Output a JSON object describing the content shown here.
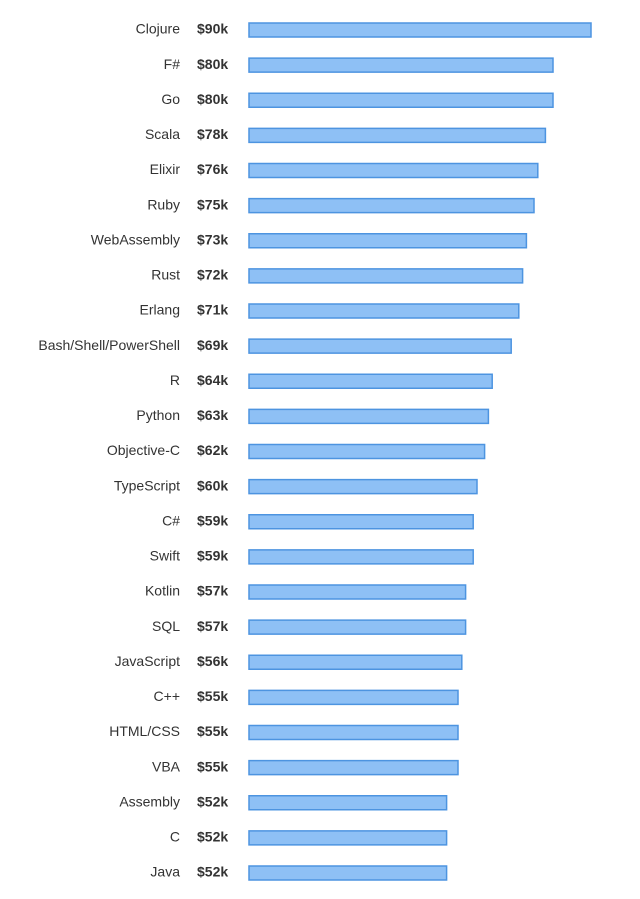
{
  "chart_data": {
    "type": "bar",
    "orientation": "horizontal",
    "categories": [
      "Clojure",
      "F#",
      "Go",
      "Scala",
      "Elixir",
      "Ruby",
      "WebAssembly",
      "Rust",
      "Erlang",
      "Bash/Shell/PowerShell",
      "R",
      "Python",
      "Objective-C",
      "TypeScript",
      "C#",
      "Swift",
      "Kotlin",
      "SQL",
      "JavaScript",
      "C++",
      "HTML/CSS",
      "VBA",
      "Assembly",
      "C",
      "Java"
    ],
    "values": [
      90,
      80,
      80,
      78,
      76,
      75,
      73,
      72,
      71,
      69,
      64,
      63,
      62,
      60,
      59,
      59,
      57,
      57,
      56,
      55,
      55,
      55,
      52,
      52,
      52
    ],
    "value_labels": [
      "$90k",
      "$80k",
      "$80k",
      "$78k",
      "$76k",
      "$75k",
      "$73k",
      "$72k",
      "$71k",
      "$69k",
      "$64k",
      "$63k",
      "$62k",
      "$60k",
      "$59k",
      "$59k",
      "$57k",
      "$57k",
      "$56k",
      "$55k",
      "$55k",
      "$55k",
      "$52k",
      "$52k",
      "$52k"
    ],
    "color": "#8ec0f5",
    "edge_color": "#4d94e0"
  }
}
